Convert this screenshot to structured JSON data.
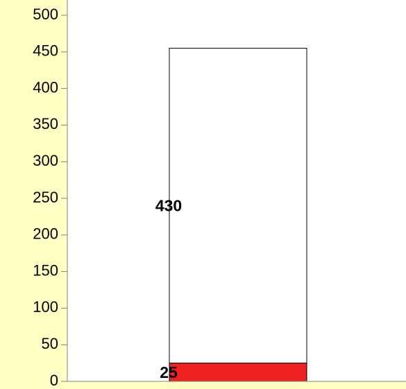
{
  "chart_data": {
    "type": "stacked_bar",
    "categories": [
      null
    ],
    "series": [
      {
        "color": "#ee2222",
        "values": [
          25
        ]
      },
      {
        "color": "#ffffff",
        "values": [
          430
        ]
      }
    ],
    "ylim": [
      0,
      500
    ],
    "yticks": [
      0,
      50,
      100,
      150,
      200,
      250,
      300,
      350,
      400,
      450,
      500
    ],
    "background": "#ffffc4",
    "plot_background": "#ffffff"
  }
}
